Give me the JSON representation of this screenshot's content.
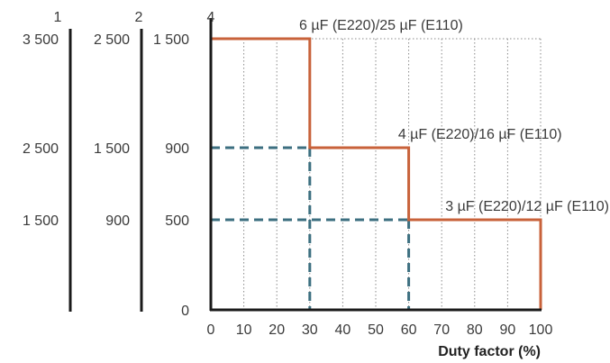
{
  "chart_data": {
    "type": "line",
    "xlabel": "Duty factor (%)",
    "xlim": [
      0,
      100
    ],
    "ylim": [
      0,
      1500
    ],
    "x_ticks": [
      "0",
      "10",
      "20",
      "30",
      "40",
      "50",
      "60",
      "70",
      "80",
      "90",
      "100"
    ],
    "y_ticks": [
      {
        "value": 0,
        "label": "0"
      },
      {
        "value": 500,
        "label": "500"
      },
      {
        "value": 900,
        "label": "900"
      },
      {
        "value": 1500,
        "label": "1 500"
      }
    ],
    "grid": "vertical dotted",
    "series": [
      {
        "color": "#c8623a",
        "style": "step",
        "points": [
          [
            0,
            1500
          ],
          [
            30,
            1500
          ],
          [
            30,
            900
          ],
          [
            60,
            900
          ],
          [
            60,
            500
          ],
          [
            100,
            500
          ],
          [
            100,
            0
          ]
        ]
      }
    ],
    "guide_lines": {
      "color": "#3c6f80",
      "style": "dashed",
      "lines": [
        {
          "from": [
            0,
            900
          ],
          "to": [
            30,
            900
          ]
        },
        {
          "from": [
            0,
            500
          ],
          "to": [
            60,
            500
          ]
        },
        {
          "from": [
            30,
            900
          ],
          "to": [
            30,
            0
          ]
        },
        {
          "from": [
            60,
            500
          ],
          "to": [
            60,
            0
          ]
        }
      ]
    },
    "annotations": [
      {
        "text": "6 µF (E220)/25 µF (E110)",
        "x": 30,
        "y": 1500
      },
      {
        "text": "4 µF (E220)/16 µF (E110)",
        "x": 60,
        "y": 900
      },
      {
        "text": "3 µF (E220)/12 µF (E110)",
        "x": 100,
        "y": 500
      }
    ],
    "scales": [
      {
        "number": "1",
        "labels": [
          {
            "value": 1500,
            "label": "3 500"
          },
          {
            "value": 900,
            "label": "2 500"
          },
          {
            "value": 500,
            "label": "1 500"
          }
        ]
      },
      {
        "number": "2",
        "labels": [
          {
            "value": 1500,
            "label": "2 500"
          },
          {
            "value": 900,
            "label": "1 500"
          },
          {
            "value": 500,
            "label": "900"
          }
        ]
      },
      {
        "number": "4"
      }
    ]
  }
}
